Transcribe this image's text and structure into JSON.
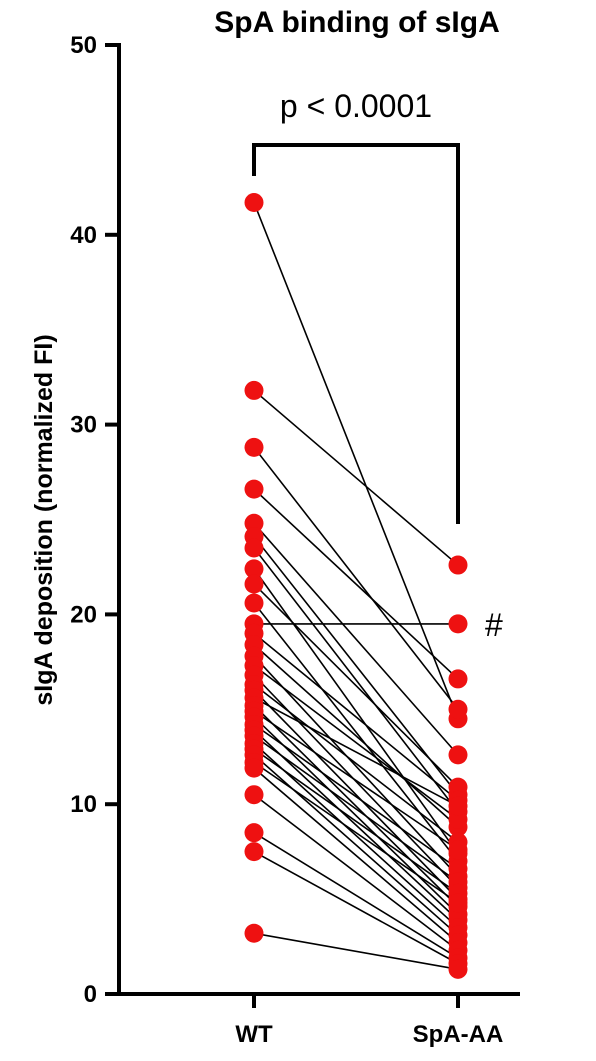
{
  "chart_data": {
    "type": "scatter",
    "title": "SpA binding of sIgA",
    "xlabel": "",
    "ylabel": "sIgA deposition (normalized FI)",
    "categories": [
      "WT",
      "SpA-AA"
    ],
    "ylim": [
      0,
      50
    ],
    "yticks": [
      0,
      10,
      20,
      30,
      40,
      50
    ],
    "grid": false,
    "annotation": "p < 0.0001",
    "marker_label": "#",
    "colors": {
      "point": "#ee1111",
      "line": "#000000"
    },
    "pairs": [
      {
        "wt": 41.7,
        "spa_aa": 14.5
      },
      {
        "wt": 31.8,
        "spa_aa": 22.6
      },
      {
        "wt": 28.8,
        "spa_aa": 15.0
      },
      {
        "wt": 26.6,
        "spa_aa": 16.6
      },
      {
        "wt": 24.8,
        "spa_aa": 12.6
      },
      {
        "wt": 24.1,
        "spa_aa": 10.5
      },
      {
        "wt": 23.5,
        "spa_aa": 9.6
      },
      {
        "wt": 22.4,
        "spa_aa": 7.4
      },
      {
        "wt": 21.6,
        "spa_aa": 10.9
      },
      {
        "wt": 20.6,
        "spa_aa": 7.0
      },
      {
        "wt": 19.5,
        "spa_aa": 19.5
      },
      {
        "wt": 19.0,
        "spa_aa": 10.2
      },
      {
        "wt": 18.4,
        "spa_aa": 8.8
      },
      {
        "wt": 17.8,
        "spa_aa": 6.2
      },
      {
        "wt": 17.3,
        "spa_aa": 9.2
      },
      {
        "wt": 16.8,
        "spa_aa": 5.6
      },
      {
        "wt": 16.3,
        "spa_aa": 8.0
      },
      {
        "wt": 16.0,
        "spa_aa": 5.0
      },
      {
        "wt": 15.6,
        "spa_aa": 9.9
      },
      {
        "wt": 15.2,
        "spa_aa": 4.6
      },
      {
        "wt": 14.9,
        "spa_aa": 7.6
      },
      {
        "wt": 14.6,
        "spa_aa": 4.2
      },
      {
        "wt": 14.2,
        "spa_aa": 6.6
      },
      {
        "wt": 13.9,
        "spa_aa": 3.9
      },
      {
        "wt": 13.6,
        "spa_aa": 5.9
      },
      {
        "wt": 13.2,
        "spa_aa": 3.5
      },
      {
        "wt": 12.9,
        "spa_aa": 5.3
      },
      {
        "wt": 12.6,
        "spa_aa": 3.1
      },
      {
        "wt": 12.2,
        "spa_aa": 4.8
      },
      {
        "wt": 11.9,
        "spa_aa": 2.7
      },
      {
        "wt": 10.5,
        "spa_aa": 2.3
      },
      {
        "wt": 8.5,
        "spa_aa": 1.9
      },
      {
        "wt": 7.5,
        "spa_aa": 1.6
      },
      {
        "wt": 3.2,
        "spa_aa": 1.3
      }
    ]
  }
}
